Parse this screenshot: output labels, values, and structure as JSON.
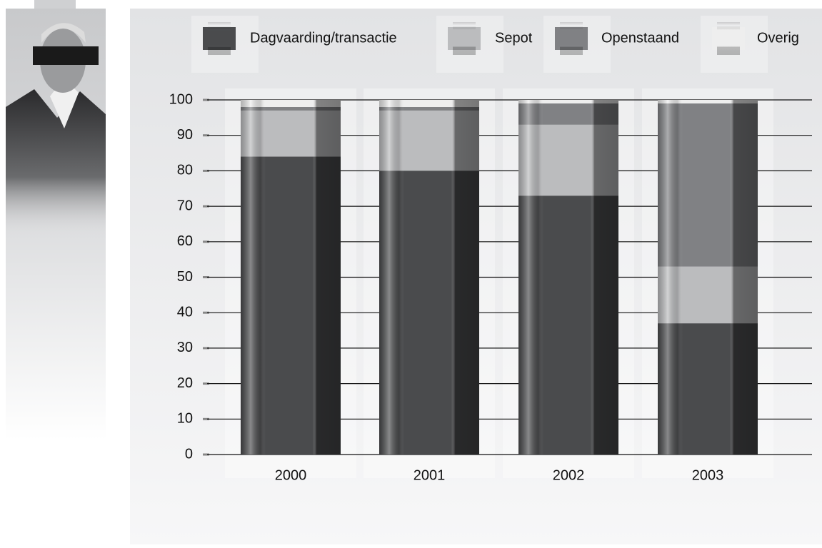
{
  "chart_data": {
    "type": "stacked_bar",
    "categories": [
      "2000",
      "2001",
      "2002",
      "2003"
    ],
    "series": [
      {
        "name": "Dagvaarding/transactie",
        "color": "#4a4b4d",
        "values": [
          84,
          80,
          73,
          37
        ]
      },
      {
        "name": "Sepot",
        "color": "#bbbcbe",
        "values": [
          13,
          17,
          20,
          16
        ]
      },
      {
        "name": "Openstaand",
        "color": "#808184",
        "values": [
          1,
          1,
          6,
          46
        ]
      },
      {
        "name": "Overig",
        "color": "#eeeeee",
        "values": [
          2,
          2,
          1,
          1
        ]
      }
    ],
    "ylim": [
      0,
      100
    ],
    "yticks": [
      0,
      10,
      20,
      30,
      40,
      50,
      60,
      70,
      80,
      90,
      100
    ],
    "grid": true
  }
}
